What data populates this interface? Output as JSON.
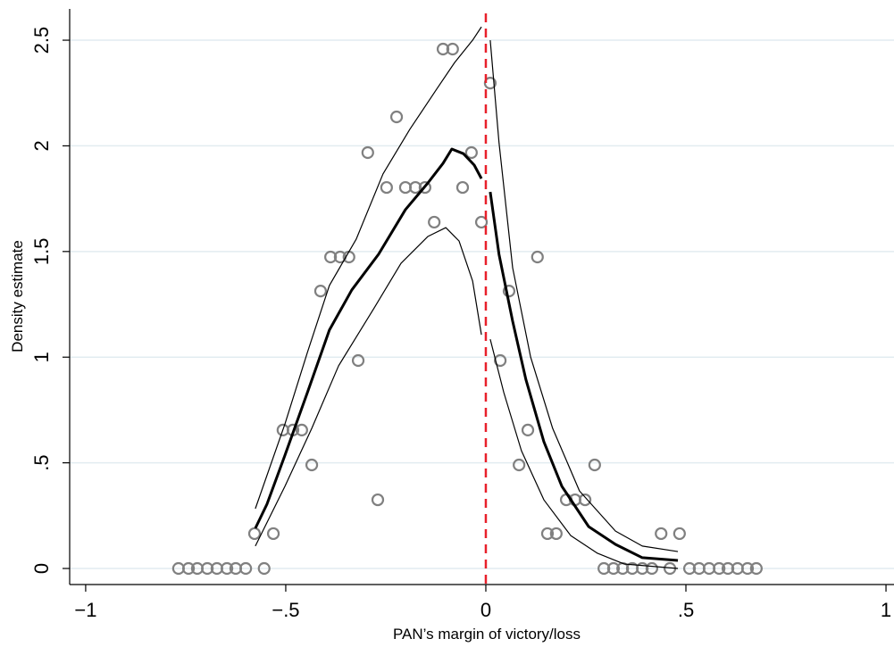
{
  "chart_data": {
    "type": "scatter",
    "x_label": "PAN’s margin of victory/loss",
    "y_label": "Density estimate",
    "xlim": [
      -1.04,
      1.02
    ],
    "ylim": [
      -0.076,
      2.648
    ],
    "xticks": [
      {
        "value": -1,
        "label": "−1"
      },
      {
        "value": -0.5,
        "label": "−.5"
      },
      0,
      {
        "value": 0.5,
        "label": ".5"
      },
      1
    ],
    "yticks": [
      0,
      {
        "value": 0.5,
        "label": ".5"
      },
      1,
      1.5,
      2,
      2.5
    ],
    "grid": true,
    "grid_color": "#e2ecf0",
    "cutoff": {
      "x": 0,
      "color": "#e8202a"
    },
    "series": [
      {
        "style": "markers",
        "color": "#808080",
        "x": [
          -0.768,
          -0.743,
          -0.721,
          -0.696,
          -0.672,
          -0.647,
          -0.625,
          -0.6,
          -0.578,
          -0.554,
          -0.531,
          -0.507,
          -0.482,
          -0.46,
          -0.435,
          -0.413,
          -0.388,
          -0.364,
          -0.342,
          -0.319,
          -0.295,
          -0.27,
          -0.248,
          -0.223,
          -0.201,
          -0.176,
          -0.152,
          -0.129,
          -0.107,
          -0.083,
          -0.058,
          -0.036,
          -0.011,
          0.011,
          0.036,
          0.058,
          0.083,
          0.105,
          0.129,
          0.154,
          0.176,
          0.201,
          0.223,
          0.248,
          0.272,
          0.295,
          0.319,
          0.342,
          0.366,
          0.391,
          0.415,
          0.438,
          0.46,
          0.484,
          0.509,
          0.533,
          0.558,
          0.583,
          0.605,
          0.629,
          0.654,
          0.676
        ],
        "values": [
          0,
          0,
          0,
          0,
          0,
          0,
          0,
          0,
          0.165,
          0,
          0.165,
          0.655,
          0.655,
          0.655,
          0.49,
          1.313,
          1.474,
          1.474,
          1.474,
          0.984,
          1.968,
          0.325,
          1.803,
          2.137,
          1.803,
          1.803,
          1.803,
          1.639,
          2.458,
          2.458,
          1.803,
          1.968,
          1.639,
          2.297,
          0.984,
          1.313,
          0.49,
          0.655,
          1.474,
          0.165,
          0.165,
          0.325,
          0.325,
          0.325,
          0.49,
          0,
          0,
          0,
          0,
          0,
          0,
          0.165,
          0,
          0.165,
          0,
          0,
          0,
          0,
          0,
          0,
          0,
          0
        ]
      },
      {
        "style": "line",
        "width": 3,
        "color": "#000000",
        "x": [
          -0.576,
          -0.547,
          -0.502,
          -0.446,
          -0.391,
          -0.335,
          -0.268,
          -0.201,
          -0.145,
          -0.107,
          -0.085,
          -0.056,
          -0.029,
          -0.011
        ],
        "values": [
          0.19,
          0.304,
          0.536,
          0.832,
          1.128,
          1.318,
          1.487,
          1.698,
          1.824,
          1.917,
          1.985,
          1.963,
          1.909,
          1.845
        ]
      },
      {
        "style": "line",
        "width": 1.2,
        "color": "#000000",
        "x": [
          -0.576,
          -0.502,
          -0.446,
          -0.391,
          -0.324,
          -0.257,
          -0.19,
          -0.123,
          -0.078,
          -0.033,
          -0.011
        ],
        "values": [
          0.283,
          0.684,
          1.022,
          1.339,
          1.558,
          1.867,
          2.078,
          2.268,
          2.394,
          2.5,
          2.563
        ]
      },
      {
        "style": "line",
        "width": 1.2,
        "color": "#000000",
        "x": [
          -0.576,
          -0.502,
          -0.435,
          -0.368,
          -0.279,
          -0.212,
          -0.145,
          -0.1,
          -0.067,
          -0.033,
          -0.011
        ],
        "values": [
          0.106,
          0.389,
          0.663,
          0.959,
          1.233,
          1.444,
          1.571,
          1.613,
          1.55,
          1.36,
          1.106
        ]
      },
      {
        "style": "line",
        "width": 3,
        "color": "#000000",
        "x": [
          0.011,
          0.033,
          0.067,
          0.1,
          0.145,
          0.19,
          0.257,
          0.324,
          0.391,
          0.48
        ],
        "values": [
          1.782,
          1.486,
          1.17,
          0.895,
          0.6,
          0.389,
          0.198,
          0.114,
          0.051,
          0.038
        ]
      },
      {
        "style": "line",
        "width": 1.2,
        "color": "#000000",
        "x": [
          0.011,
          0.033,
          0.067,
          0.112,
          0.167,
          0.234,
          0.324,
          0.391,
          0.48
        ],
        "values": [
          2.5,
          2.014,
          1.423,
          1.0,
          0.663,
          0.367,
          0.177,
          0.106,
          0.08
        ]
      },
      {
        "style": "line",
        "width": 1.2,
        "color": "#000000",
        "x": [
          0.011,
          0.045,
          0.089,
          0.145,
          0.212,
          0.279,
          0.346,
          0.48
        ],
        "values": [
          1.085,
          0.832,
          0.557,
          0.325,
          0.156,
          0.072,
          0.021,
          0
        ]
      }
    ]
  }
}
